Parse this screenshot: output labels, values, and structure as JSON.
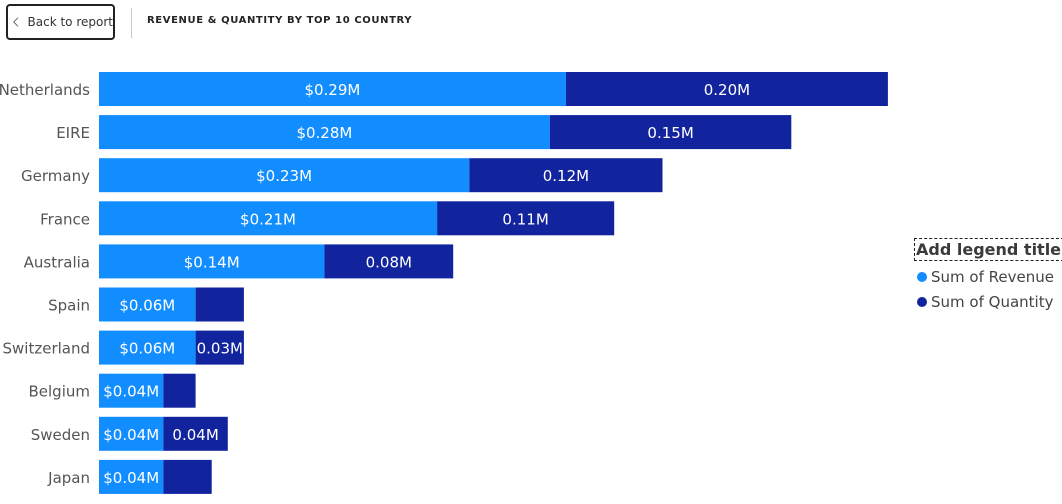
{
  "header": {
    "back_label": "Back to report",
    "title": "REVENUE & QUANTITY BY TOP 10 COUNTRY"
  },
  "legend": {
    "title": "Add legend title"
  },
  "colors": {
    "revenue": "#118dff",
    "quantity": "#12239e"
  },
  "chart_data": {
    "type": "bar",
    "orientation": "horizontal",
    "stacked": true,
    "categories": [
      "Netherlands",
      "EIRE",
      "Germany",
      "France",
      "Australia",
      "Spain",
      "Switzerland",
      "Belgium",
      "Sweden",
      "Japan"
    ],
    "series": [
      {
        "name": "Sum of Revenue",
        "values": [
          0.29,
          0.28,
          0.23,
          0.21,
          0.14,
          0.06,
          0.06,
          0.04,
          0.04,
          0.04
        ],
        "labels": [
          "$0.29M",
          "$0.28M",
          "$0.23M",
          "$0.21M",
          "$0.14M",
          "$0.06M",
          "$0.06M",
          "$0.04M",
          "$0.04M",
          "$0.04M"
        ]
      },
      {
        "name": "Sum of Quantity",
        "values": [
          0.2,
          0.15,
          0.12,
          0.11,
          0.08,
          0.03,
          0.03,
          0.02,
          0.04,
          0.03
        ],
        "labels": [
          "0.20M",
          "0.15M",
          "0.12M",
          "0.11M",
          "0.08M",
          "",
          "0.03M",
          "",
          "0.04M",
          ""
        ]
      }
    ],
    "grid": false,
    "legend_position": "right"
  }
}
